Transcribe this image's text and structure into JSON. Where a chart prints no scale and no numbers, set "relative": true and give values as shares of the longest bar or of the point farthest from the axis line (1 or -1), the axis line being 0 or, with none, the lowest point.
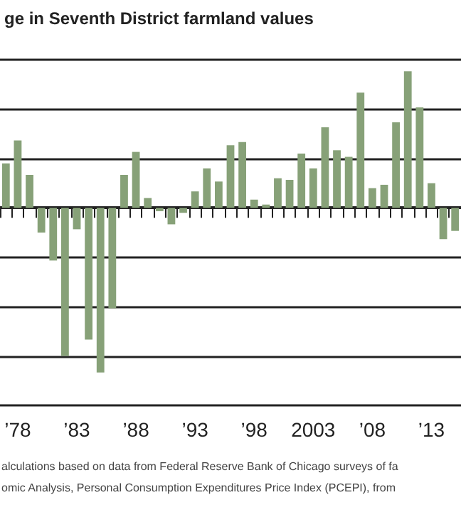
{
  "chart_data": {
    "type": "bar",
    "title": "ge in Seventh District farmland values",
    "relative": true,
    "grid": "y",
    "color": "#87a178",
    "categories": [
      null,
      "’78",
      null,
      null,
      null,
      null,
      "’83",
      null,
      null,
      null,
      null,
      "’88",
      null,
      null,
      null,
      null,
      "’93",
      null,
      null,
      null,
      null,
      "’98",
      null,
      null,
      null,
      null,
      "2003",
      null,
      null,
      null,
      null,
      "’08",
      null,
      null,
      null,
      null,
      "’13",
      null,
      null
    ],
    "values": [
      0.27,
      0.41,
      0.2,
      -0.15,
      -0.32,
      -0.9,
      -0.13,
      -0.8,
      -1,
      -0.61,
      0.2,
      0.34,
      0.06,
      -0.02,
      -0.1,
      -0.03,
      0.1,
      0.24,
      0.16,
      0.38,
      0.4,
      0.05,
      0.02,
      0.18,
      0.17,
      0.33,
      0.24,
      0.49,
      0.35,
      0.31,
      0.7,
      0.12,
      0.14,
      0.52,
      0.83,
      0.61,
      0.15,
      -0.19,
      -0.14
    ],
    "annotations": [
      "alculations based on data from Federal Reserve Bank of Chicago surveys of fa",
      "omic Analysis, Personal Consumption Expenditures Price Index (PCEPI), from"
    ]
  }
}
